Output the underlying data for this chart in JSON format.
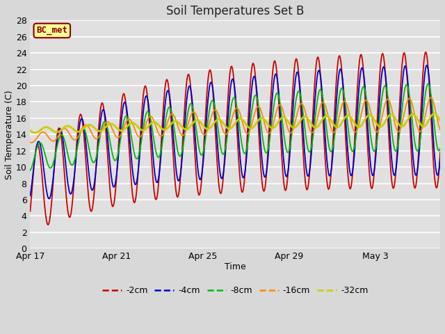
{
  "title": "Soil Temperatures Set B",
  "xlabel": "Time",
  "ylabel": "Soil Temperature (C)",
  "annotation": "BC_met",
  "ylim": [
    0,
    28
  ],
  "yticks": [
    0,
    2,
    4,
    6,
    8,
    10,
    12,
    14,
    16,
    18,
    20,
    22,
    24,
    26,
    28
  ],
  "xtick_labels": [
    "Apr 17",
    "Apr 21",
    "Apr 25",
    "Apr 29",
    "May 3"
  ],
  "xtick_positions": [
    0,
    4,
    8,
    12,
    16
  ],
  "n_days": 19,
  "series": {
    "-2cm": {
      "color": "#cc0000",
      "linewidth": 1.3
    },
    "-4cm": {
      "color": "#0000cc",
      "linewidth": 1.3
    },
    "-8cm": {
      "color": "#00bb00",
      "linewidth": 1.3
    },
    "-16cm": {
      "color": "#ff8800",
      "linewidth": 1.3
    },
    "-32cm": {
      "color": "#cccc00",
      "linewidth": 2.0
    }
  },
  "fig_bg_color": "#d8d8d8",
  "plot_bg_color": "#e0e0e0",
  "grid_color": "#ffffff",
  "title_fontsize": 12,
  "label_fontsize": 9,
  "tick_fontsize": 9
}
